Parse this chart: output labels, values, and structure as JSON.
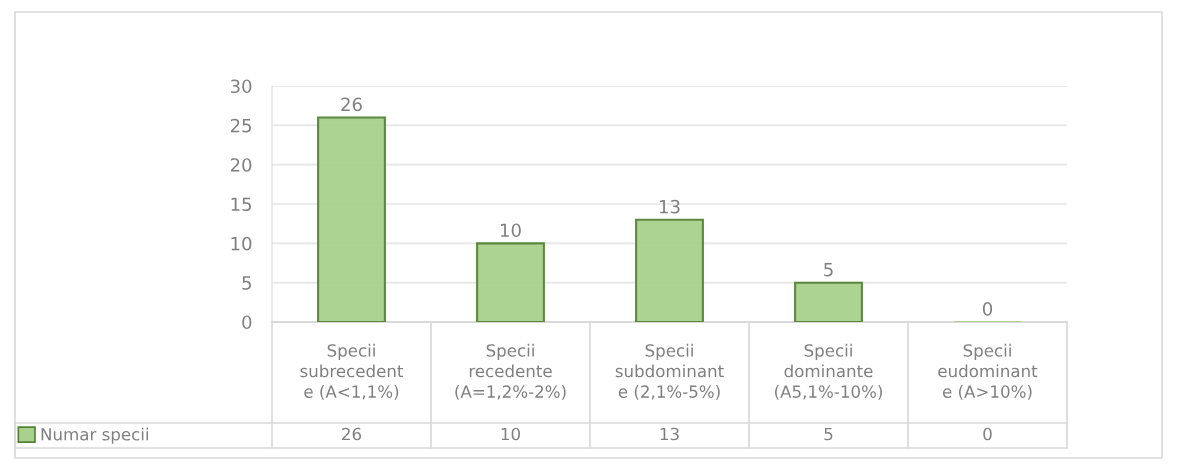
{
  "chart_data": {
    "type": "bar",
    "categories": [
      "Specii\nsubrecedent\ne (A<1,1%)",
      "Specii\nrecedente\n(A=1,2%-2%)",
      "Specii\nsubdominant\ne (2,1%-5%)",
      "Specii\ndominante\n(A5,1%-10%)",
      "Specii\neudominant\ne (A>10%)"
    ],
    "series": [
      {
        "name": "Numar specii",
        "color": "#a9d18e",
        "values": [
          26,
          10,
          13,
          5,
          0
        ]
      }
    ],
    "ylim": [
      0,
      30
    ],
    "yticks": [
      0,
      5,
      10,
      15,
      20,
      25,
      30
    ],
    "grid": "y",
    "legend": "bottom left",
    "data_labels": true,
    "annotations": [
      "26",
      "10",
      "13",
      "5",
      "0"
    ]
  }
}
